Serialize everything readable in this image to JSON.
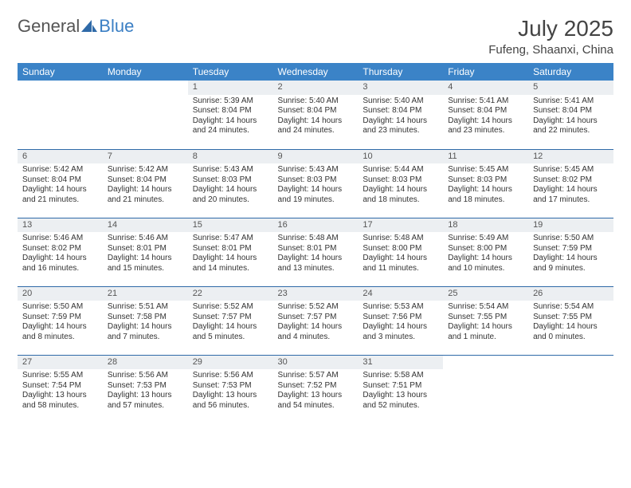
{
  "brand": {
    "general": "General",
    "blue": "Blue"
  },
  "title": "July 2025",
  "location": "Fufeng, Shaanxi, China",
  "colors": {
    "header_bg": "#3b83c7",
    "band_bg": "#eceff2",
    "rule": "#2f6aa8",
    "text": "#333333",
    "logo_gray": "#555555",
    "logo_blue": "#3b7fc4"
  },
  "day_names": [
    "Sunday",
    "Monday",
    "Tuesday",
    "Wednesday",
    "Thursday",
    "Friday",
    "Saturday"
  ],
  "weeks": [
    [
      {
        "n": "",
        "sr": "",
        "ss": "",
        "dl": ""
      },
      {
        "n": "",
        "sr": "",
        "ss": "",
        "dl": ""
      },
      {
        "n": "1",
        "sr": "Sunrise: 5:39 AM",
        "ss": "Sunset: 8:04 PM",
        "dl": "Daylight: 14 hours and 24 minutes."
      },
      {
        "n": "2",
        "sr": "Sunrise: 5:40 AM",
        "ss": "Sunset: 8:04 PM",
        "dl": "Daylight: 14 hours and 24 minutes."
      },
      {
        "n": "3",
        "sr": "Sunrise: 5:40 AM",
        "ss": "Sunset: 8:04 PM",
        "dl": "Daylight: 14 hours and 23 minutes."
      },
      {
        "n": "4",
        "sr": "Sunrise: 5:41 AM",
        "ss": "Sunset: 8:04 PM",
        "dl": "Daylight: 14 hours and 23 minutes."
      },
      {
        "n": "5",
        "sr": "Sunrise: 5:41 AM",
        "ss": "Sunset: 8:04 PM",
        "dl": "Daylight: 14 hours and 22 minutes."
      }
    ],
    [
      {
        "n": "6",
        "sr": "Sunrise: 5:42 AM",
        "ss": "Sunset: 8:04 PM",
        "dl": "Daylight: 14 hours and 21 minutes."
      },
      {
        "n": "7",
        "sr": "Sunrise: 5:42 AM",
        "ss": "Sunset: 8:04 PM",
        "dl": "Daylight: 14 hours and 21 minutes."
      },
      {
        "n": "8",
        "sr": "Sunrise: 5:43 AM",
        "ss": "Sunset: 8:03 PM",
        "dl": "Daylight: 14 hours and 20 minutes."
      },
      {
        "n": "9",
        "sr": "Sunrise: 5:43 AM",
        "ss": "Sunset: 8:03 PM",
        "dl": "Daylight: 14 hours and 19 minutes."
      },
      {
        "n": "10",
        "sr": "Sunrise: 5:44 AM",
        "ss": "Sunset: 8:03 PM",
        "dl": "Daylight: 14 hours and 18 minutes."
      },
      {
        "n": "11",
        "sr": "Sunrise: 5:45 AM",
        "ss": "Sunset: 8:03 PM",
        "dl": "Daylight: 14 hours and 18 minutes."
      },
      {
        "n": "12",
        "sr": "Sunrise: 5:45 AM",
        "ss": "Sunset: 8:02 PM",
        "dl": "Daylight: 14 hours and 17 minutes."
      }
    ],
    [
      {
        "n": "13",
        "sr": "Sunrise: 5:46 AM",
        "ss": "Sunset: 8:02 PM",
        "dl": "Daylight: 14 hours and 16 minutes."
      },
      {
        "n": "14",
        "sr": "Sunrise: 5:46 AM",
        "ss": "Sunset: 8:01 PM",
        "dl": "Daylight: 14 hours and 15 minutes."
      },
      {
        "n": "15",
        "sr": "Sunrise: 5:47 AM",
        "ss": "Sunset: 8:01 PM",
        "dl": "Daylight: 14 hours and 14 minutes."
      },
      {
        "n": "16",
        "sr": "Sunrise: 5:48 AM",
        "ss": "Sunset: 8:01 PM",
        "dl": "Daylight: 14 hours and 13 minutes."
      },
      {
        "n": "17",
        "sr": "Sunrise: 5:48 AM",
        "ss": "Sunset: 8:00 PM",
        "dl": "Daylight: 14 hours and 11 minutes."
      },
      {
        "n": "18",
        "sr": "Sunrise: 5:49 AM",
        "ss": "Sunset: 8:00 PM",
        "dl": "Daylight: 14 hours and 10 minutes."
      },
      {
        "n": "19",
        "sr": "Sunrise: 5:50 AM",
        "ss": "Sunset: 7:59 PM",
        "dl": "Daylight: 14 hours and 9 minutes."
      }
    ],
    [
      {
        "n": "20",
        "sr": "Sunrise: 5:50 AM",
        "ss": "Sunset: 7:59 PM",
        "dl": "Daylight: 14 hours and 8 minutes."
      },
      {
        "n": "21",
        "sr": "Sunrise: 5:51 AM",
        "ss": "Sunset: 7:58 PM",
        "dl": "Daylight: 14 hours and 7 minutes."
      },
      {
        "n": "22",
        "sr": "Sunrise: 5:52 AM",
        "ss": "Sunset: 7:57 PM",
        "dl": "Daylight: 14 hours and 5 minutes."
      },
      {
        "n": "23",
        "sr": "Sunrise: 5:52 AM",
        "ss": "Sunset: 7:57 PM",
        "dl": "Daylight: 14 hours and 4 minutes."
      },
      {
        "n": "24",
        "sr": "Sunrise: 5:53 AM",
        "ss": "Sunset: 7:56 PM",
        "dl": "Daylight: 14 hours and 3 minutes."
      },
      {
        "n": "25",
        "sr": "Sunrise: 5:54 AM",
        "ss": "Sunset: 7:55 PM",
        "dl": "Daylight: 14 hours and 1 minute."
      },
      {
        "n": "26",
        "sr": "Sunrise: 5:54 AM",
        "ss": "Sunset: 7:55 PM",
        "dl": "Daylight: 14 hours and 0 minutes."
      }
    ],
    [
      {
        "n": "27",
        "sr": "Sunrise: 5:55 AM",
        "ss": "Sunset: 7:54 PM",
        "dl": "Daylight: 13 hours and 58 minutes."
      },
      {
        "n": "28",
        "sr": "Sunrise: 5:56 AM",
        "ss": "Sunset: 7:53 PM",
        "dl": "Daylight: 13 hours and 57 minutes."
      },
      {
        "n": "29",
        "sr": "Sunrise: 5:56 AM",
        "ss": "Sunset: 7:53 PM",
        "dl": "Daylight: 13 hours and 56 minutes."
      },
      {
        "n": "30",
        "sr": "Sunrise: 5:57 AM",
        "ss": "Sunset: 7:52 PM",
        "dl": "Daylight: 13 hours and 54 minutes."
      },
      {
        "n": "31",
        "sr": "Sunrise: 5:58 AM",
        "ss": "Sunset: 7:51 PM",
        "dl": "Daylight: 13 hours and 52 minutes."
      },
      {
        "n": "",
        "sr": "",
        "ss": "",
        "dl": ""
      },
      {
        "n": "",
        "sr": "",
        "ss": "",
        "dl": ""
      }
    ]
  ]
}
